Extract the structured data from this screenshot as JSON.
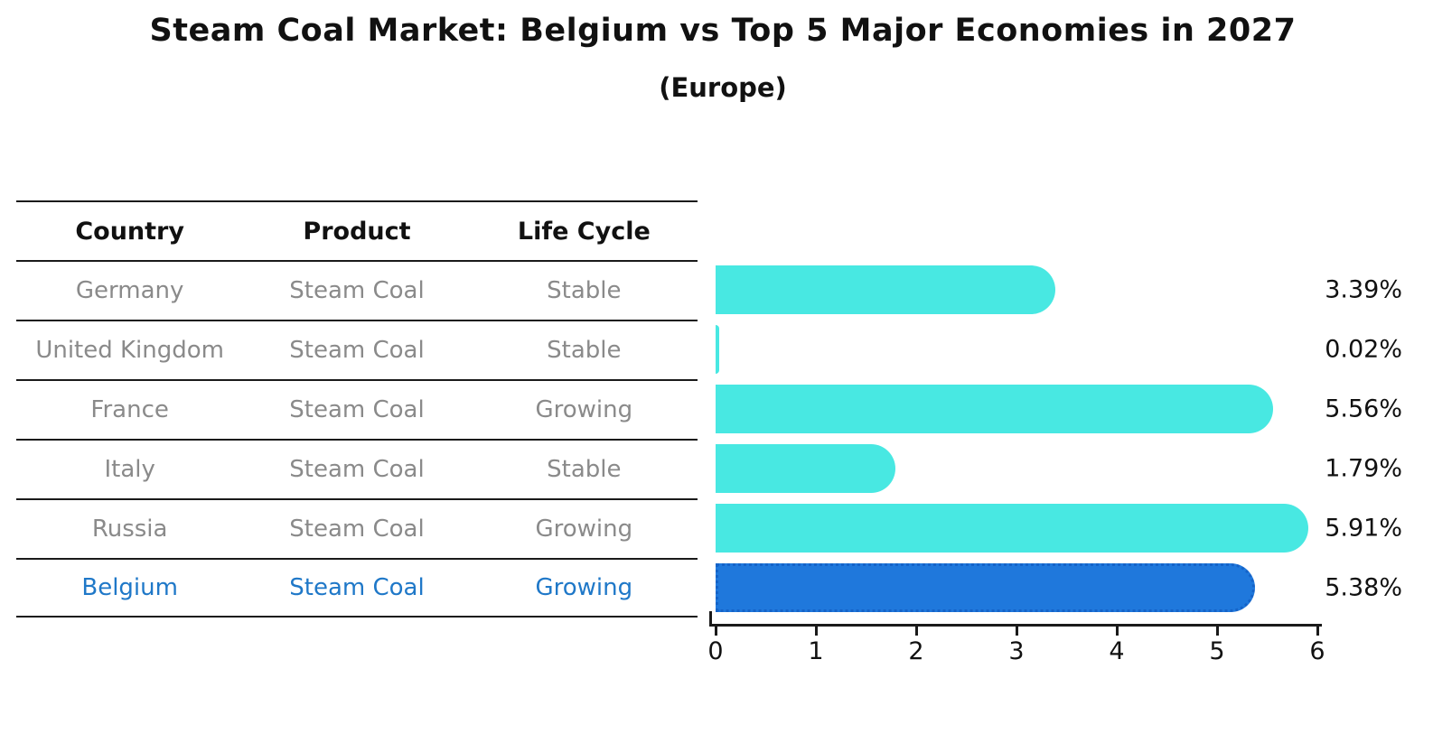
{
  "title": "Steam Coal Market: Belgium vs Top 5 Major Economies in 2027",
  "subtitle": "(Europe)",
  "table": {
    "headers": [
      "Country",
      "Product",
      "Life Cycle"
    ],
    "rows": [
      {
        "country": "Germany",
        "product": "Steam Coal",
        "life_cycle": "Stable"
      },
      {
        "country": "United Kingdom",
        "product": "Steam Coal",
        "life_cycle": "Stable"
      },
      {
        "country": "France",
        "product": "Steam Coal",
        "life_cycle": "Growing"
      },
      {
        "country": "Italy",
        "product": "Steam Coal",
        "life_cycle": "Stable"
      },
      {
        "country": "Russia",
        "product": "Steam Coal",
        "life_cycle": "Growing"
      },
      {
        "country": "Belgium",
        "product": "Steam Coal",
        "life_cycle": "Growing"
      }
    ],
    "highlight_row": "Belgium"
  },
  "chart_data": {
    "type": "bar",
    "orientation": "horizontal",
    "title": "Steam Coal Market: Belgium vs Top 5 Major Economies in 2027",
    "subtitle": "(Europe)",
    "categories": [
      "Germany",
      "United Kingdom",
      "France",
      "Italy",
      "Russia",
      "Belgium"
    ],
    "values": [
      3.39,
      0.02,
      5.56,
      1.79,
      5.91,
      5.38
    ],
    "value_labels": [
      "3.39%",
      "0.02%",
      "5.56%",
      "1.79%",
      "5.91%",
      "5.38%"
    ],
    "x_ticks": [
      "0",
      "1",
      "2",
      "3",
      "4",
      "5",
      "6"
    ],
    "xlim": [
      0,
      6
    ],
    "unit": "%",
    "grid": false,
    "legend": false,
    "highlight_index": 5,
    "bar_color": "#48e8e2",
    "highlight_color": "#1f78dc",
    "highlight_border_color": "#1563c8"
  },
  "colors": {
    "background": "#ffffff",
    "text_primary": "#111111",
    "text_muted": "#8a8a8a",
    "highlight_text": "#1f78c8",
    "line": "#1a1a1a"
  }
}
